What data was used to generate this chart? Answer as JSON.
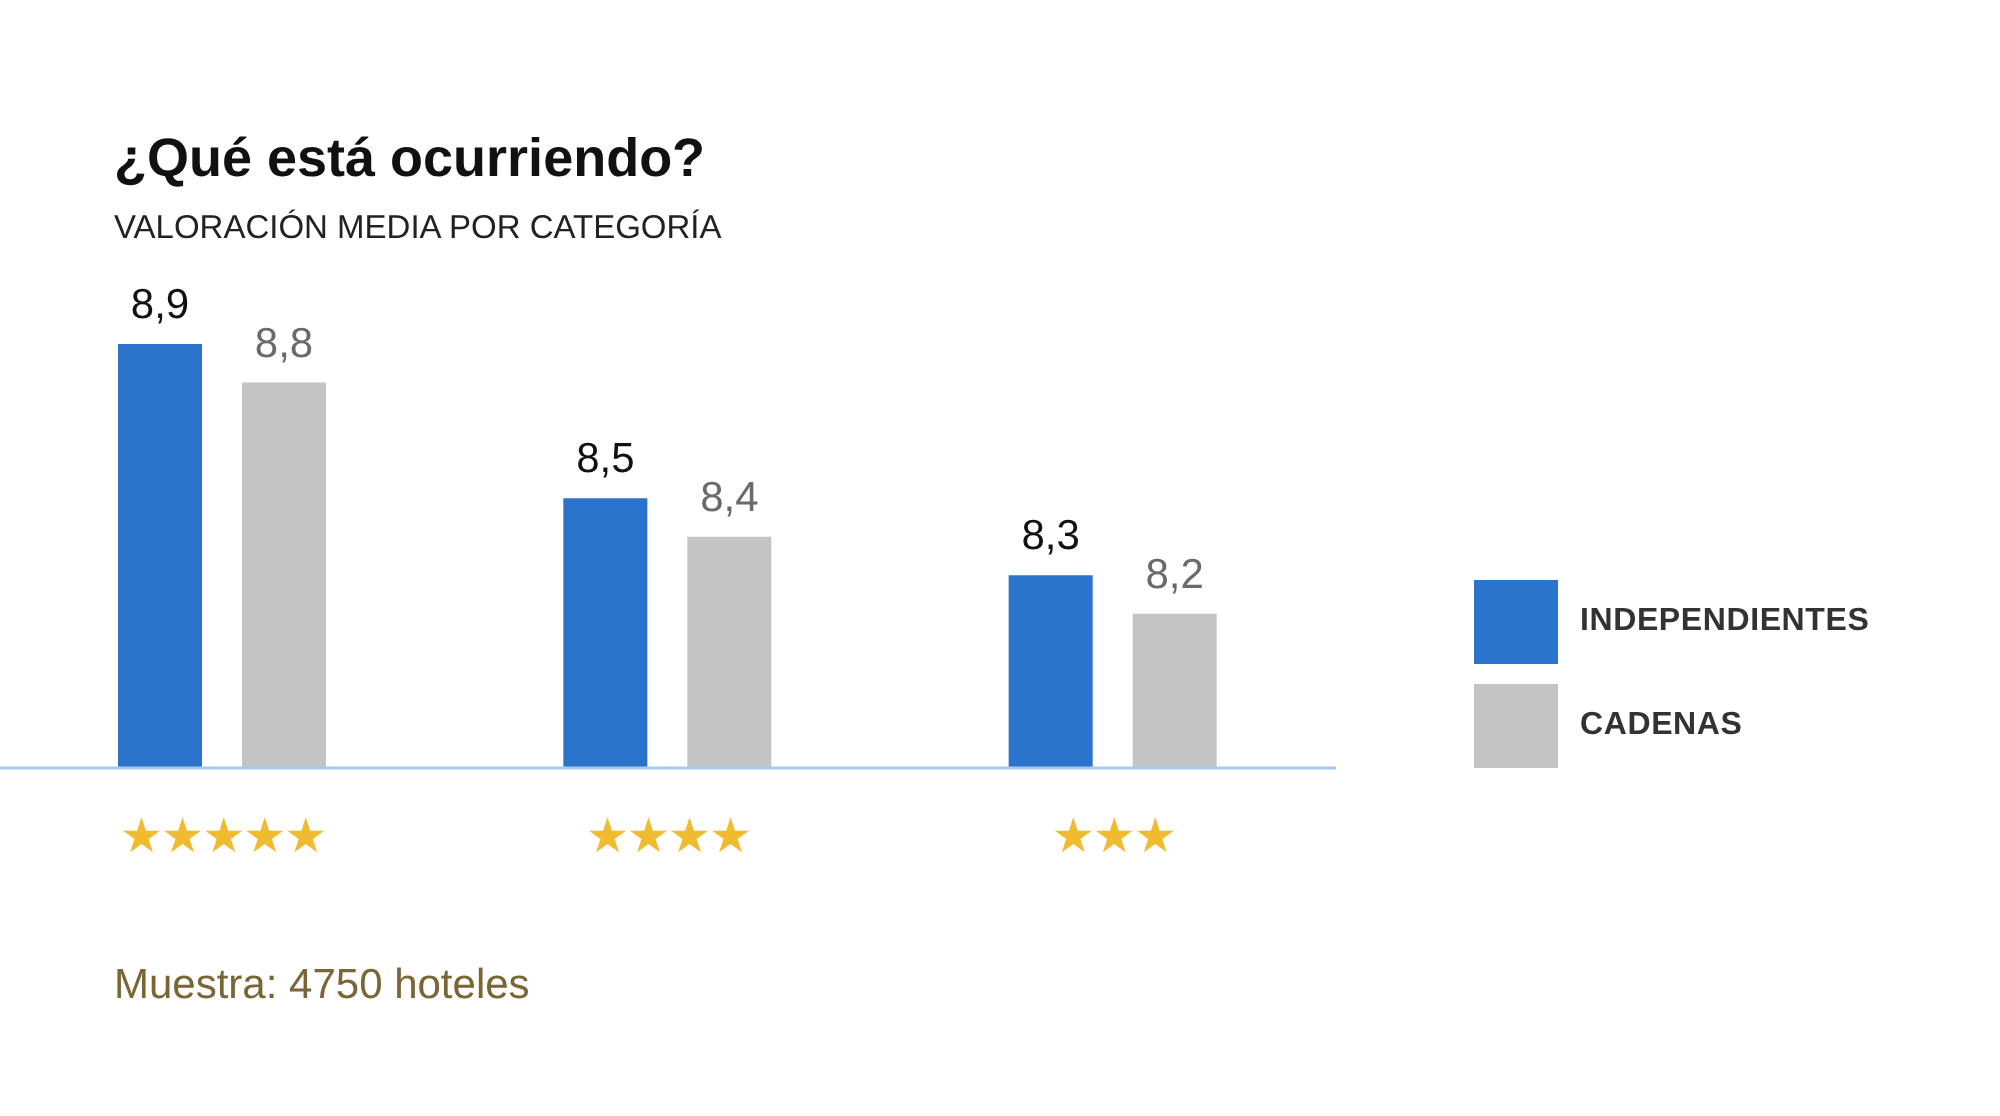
{
  "chart_data": {
    "type": "bar",
    "title": "¿Qué está ocurriendo?",
    "subtitle": "VALORACIÓN MEDIA POR CATEGORÍA",
    "categories": [
      "★★★★★",
      "★★★★",
      "★★★"
    ],
    "series": [
      {
        "name": "INDEPENDIENTES",
        "color": "#2a74cc",
        "values": [
          8.9,
          8.5,
          8.3
        ],
        "value_labels": [
          "8,9",
          "8,5",
          "8,3"
        ]
      },
      {
        "name": "CADENAS",
        "color": "#c4c4c4",
        "values": [
          8.8,
          8.4,
          8.2
        ],
        "value_labels": [
          "8,8",
          "8,4",
          "8,2"
        ]
      }
    ],
    "ylim": [
      7.8,
      8.9
    ],
    "tick_labels": "x",
    "legend": "right",
    "annotations": [
      "Muestra: 4750 hoteles"
    ]
  }
}
